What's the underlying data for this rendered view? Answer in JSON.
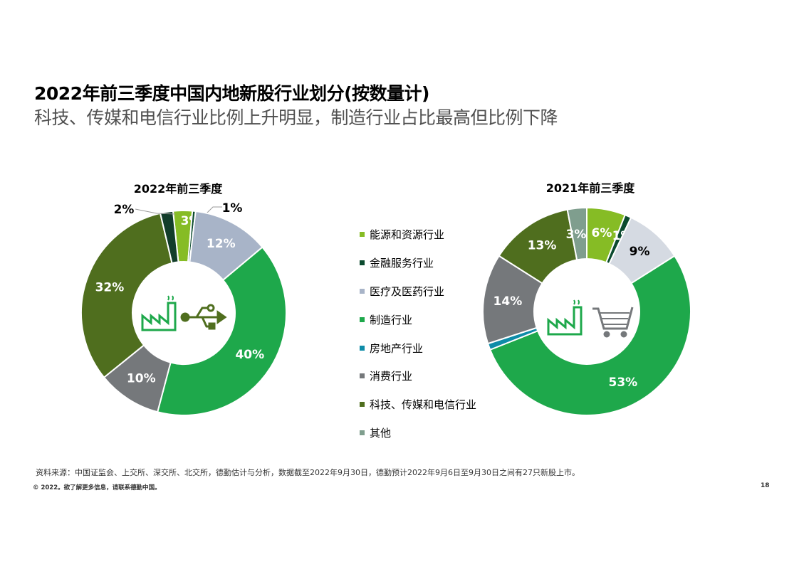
{
  "header": {
    "title": "2022年前三季度中国内地新股行业划分(按数量计)",
    "subtitle": "科技、传媒和电信行业比例上升明显，制造行业占比最高但比例下降"
  },
  "legend": [
    {
      "label": "能源和资源行业",
      "color": "#86bc25"
    },
    {
      "label": "金融服务行业",
      "color": "#0b4a2e"
    },
    {
      "label": "医疗及医药行业",
      "color": "#a8b4c8"
    },
    {
      "label": "制造行业",
      "color": "#1ea84b"
    },
    {
      "label": "房地产行业",
      "color": "#0e8ca8"
    },
    {
      "label": "消费行业",
      "color": "#75787b"
    },
    {
      "label": "科技、传媒和电信行业",
      "color": "#4f6e1e"
    },
    {
      "label": "其他",
      "color": "#7f9e8e"
    }
  ],
  "chart_data": [
    {
      "type": "pie",
      "title": "2022年前三季度",
      "categories": [
        "能源和资源行业",
        "金融服务行业",
        "医疗及医药行业",
        "制造行业",
        "房地产行业",
        "消费行业",
        "科技、传媒和电信行业",
        "其他"
      ],
      "values": [
        3,
        0.5,
        12,
        40,
        0,
        10,
        32,
        2
      ],
      "data_labels": [
        "3%",
        "1%",
        "12%",
        "40%",
        "",
        "10%",
        "32%",
        "2%"
      ],
      "colors": [
        "#86bc25",
        "#0b4a2e",
        "#a8b4c8",
        "#1ea84b",
        "#0e8ca8",
        "#75787b",
        "#4f6e1e",
        "#123d2a"
      ],
      "center_icons": [
        "factory-icon",
        "usb-icon"
      ]
    },
    {
      "type": "pie",
      "title": "2021年前三季度",
      "categories": [
        "能源和资源行业",
        "金融服务行业",
        "医疗及医药行业",
        "制造行业",
        "房地产行业",
        "消费行业",
        "科技、传媒和电信行业",
        "其他"
      ],
      "values": [
        6,
        1,
        9,
        53,
        1,
        14,
        13,
        3
      ],
      "data_labels": [
        "6%",
        "1%",
        "9%",
        "53%",
        "",
        "14%",
        "13%",
        "3%"
      ],
      "colors": [
        "#86bc25",
        "#0b4a2e",
        "#d5dae2",
        "#1ea84b",
        "#0e8ca8",
        "#75787b",
        "#4f6e1e",
        "#7f9e8e"
      ],
      "center_icons": [
        "factory-icon",
        "shopping-cart-icon"
      ]
    }
  ],
  "footer": {
    "source": "资料来源：中国证监会、上交所、深交所、北交所，德勤估计与分析，数据截至2022年9月30日，德勤预计2022年9月6日至9月30日之间有27只新股上市。",
    "copyright": "© 2022。欲了解更多信息，请联系德勤中国。",
    "page_number": "18"
  }
}
